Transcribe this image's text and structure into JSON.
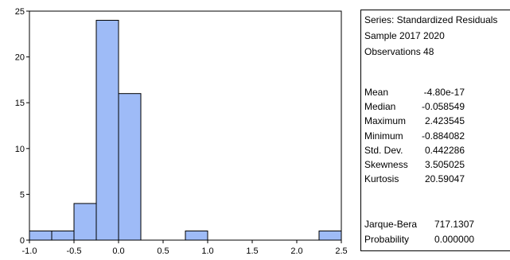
{
  "chart_data": {
    "type": "bar",
    "title": "",
    "xlabel": "",
    "ylabel": "",
    "bins": [
      {
        "x0": -1.0,
        "x1": -0.75,
        "count": 1
      },
      {
        "x0": -0.75,
        "x1": -0.5,
        "count": 1
      },
      {
        "x0": -0.5,
        "x1": -0.25,
        "count": 4
      },
      {
        "x0": -0.25,
        "x1": 0.0,
        "count": 24
      },
      {
        "x0": 0.0,
        "x1": 0.25,
        "count": 16
      },
      {
        "x0": 0.25,
        "x1": 0.5,
        "count": 0
      },
      {
        "x0": 0.5,
        "x1": 0.75,
        "count": 0
      },
      {
        "x0": 0.75,
        "x1": 1.0,
        "count": 1
      },
      {
        "x0": 1.0,
        "x1": 1.25,
        "count": 0
      },
      {
        "x0": 1.25,
        "x1": 1.5,
        "count": 0
      },
      {
        "x0": 1.5,
        "x1": 1.75,
        "count": 0
      },
      {
        "x0": 1.75,
        "x1": 2.0,
        "count": 0
      },
      {
        "x0": 2.0,
        "x1": 2.25,
        "count": 0
      },
      {
        "x0": 2.25,
        "x1": 2.5,
        "count": 1
      }
    ],
    "xlim": [
      -1.0,
      2.5
    ],
    "ylim": [
      0,
      25
    ],
    "x_ticks": [
      "-1.0",
      "-0.5",
      "0.0",
      "0.5",
      "1.0",
      "1.5",
      "2.0",
      "2.5"
    ],
    "y_ticks": [
      "0",
      "5",
      "10",
      "15",
      "20",
      "25"
    ],
    "bar_color": "#9EBBF7",
    "grid": false
  },
  "stats": {
    "series_line": "Series: Standardized Residuals",
    "sample_line": "Sample 2017 2020",
    "observations_line": "Observations 48",
    "rows": [
      {
        "label": "Mean",
        "value": "-4.80e-17"
      },
      {
        "label": "Median",
        "value": "-0.058549"
      },
      {
        "label": "Maximum",
        "value": "2.423545"
      },
      {
        "label": "Minimum",
        "value": "-0.884082"
      },
      {
        "label": "Std. Dev.",
        "value": "0.442286"
      },
      {
        "label": "Skewness",
        "value": "3.505025"
      },
      {
        "label": "Kurtosis",
        "value": "20.59047"
      }
    ],
    "test_rows": [
      {
        "label": "Jarque-Bera",
        "value": "717.1307"
      },
      {
        "label": "Probability",
        "value": "0.000000"
      }
    ]
  }
}
